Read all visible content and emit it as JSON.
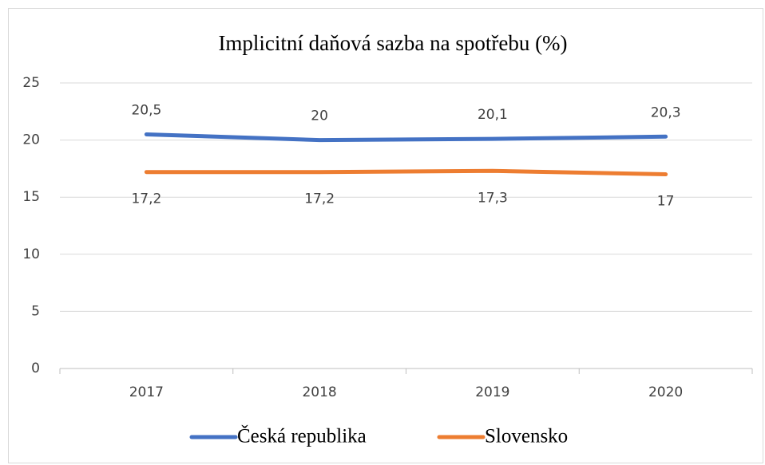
{
  "chart_data": {
    "type": "line",
    "title": "Implicitní daňová sazba na spotřebu (%)",
    "categories": [
      "2017",
      "2018",
      "2019",
      "2020"
    ],
    "series": [
      {
        "name": "Česká republika",
        "color": "#4472c4",
        "values": [
          20.5,
          20,
          20.1,
          20.3
        ],
        "value_labels": [
          "20,5",
          "20",
          "20,1",
          "20,3"
        ]
      },
      {
        "name": "Slovensko",
        "color": "#ed7d31",
        "values": [
          17.2,
          17.2,
          17.3,
          17
        ],
        "value_labels": [
          "17,2",
          "17,2",
          "17,3",
          "17"
        ]
      }
    ],
    "ylim": [
      0,
      25
    ],
    "yticks": [
      0,
      5,
      10,
      15,
      20,
      25
    ],
    "grid": true,
    "legend": "bottom"
  }
}
